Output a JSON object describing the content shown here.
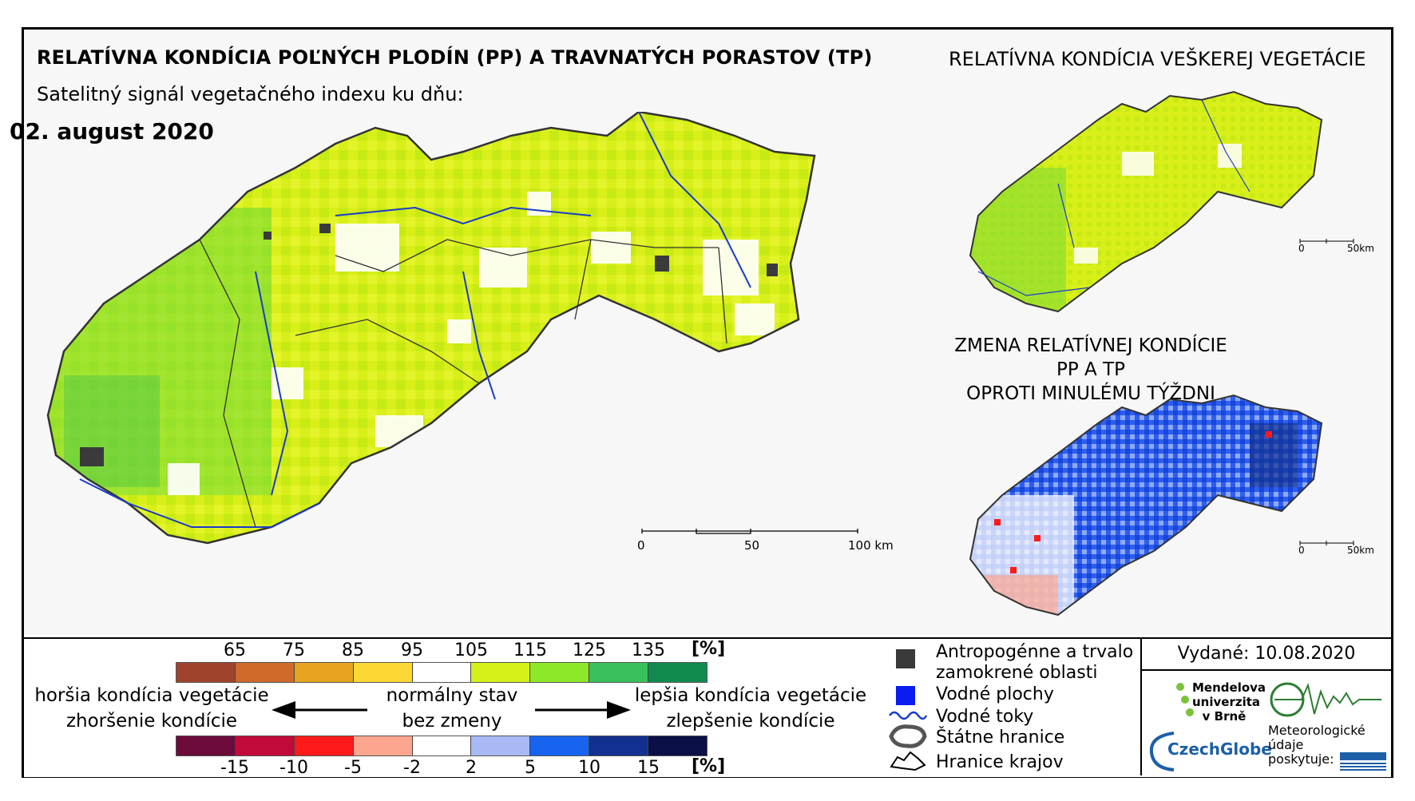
{
  "header": {
    "main_title": "RELATÍVNA KONDÍCIA POĽNÝCH PLODÍN (PP) A TRAVNATÝCH PORASTOV (TP)",
    "subtitle": "Satelitný signál vegetačného indexu ku dňu:",
    "date": "02. august 2020",
    "right_title": "RELATÍVNA KONDÍCIA VEŠKEREJ VEGETÁCIE",
    "change_title_line1": "ZMENA RELATÍVNEJ KONDÍCIE PP A TP",
    "change_title_line2": "OPROTI MINULÉMU TÝŽDNI"
  },
  "main_scale": {
    "labels": [
      "0",
      "50",
      "100 km"
    ]
  },
  "small_scale_top": {
    "labels": [
      "0",
      "50km"
    ]
  },
  "small_scale_bottom": {
    "labels": [
      "0",
      "50km"
    ]
  },
  "condition_legend": {
    "ticks": [
      "65",
      "75",
      "85",
      "95",
      "105",
      "115",
      "125",
      "135"
    ],
    "unit": "[%]",
    "colors": [
      "#a0432c",
      "#d06a2b",
      "#e8a420",
      "#fcd835",
      "#ffffff",
      "#d6f01a",
      "#8ee82a",
      "#3ac05a",
      "#118a4f"
    ]
  },
  "change_legend": {
    "ticks": [
      "-15",
      "-10",
      "-5",
      "-2",
      "2",
      "5",
      "10",
      "15"
    ],
    "unit": "[%]",
    "colors": [
      "#6b0a3b",
      "#c10a3a",
      "#ff1a1a",
      "#fca58f",
      "#ffffff",
      "#a8b9f5",
      "#1764f0",
      "#12308f",
      "#0a0f47"
    ]
  },
  "legend_text": {
    "worse_line1": "horšia kondícia vegetácie",
    "worse_line2": "zhoršenie kondície",
    "normal_line1": "normálny stav",
    "normal_line2": "bez zmeny",
    "better_line1": "lepšia kondícia vegetácie",
    "better_line2": "zlepšenie kondície"
  },
  "symbols": {
    "urban_line1": "Antropogénne a trvalo",
    "urban_line2": "zamokrené oblasti",
    "water": "Vodné plochy",
    "rivers": "Vodné toky",
    "borders": "Štátne hranice",
    "regions": "Hranice krajov",
    "colors": {
      "urban": "#3a3a3a",
      "water": "#0a1cf0",
      "river": "#1a3cc8"
    }
  },
  "issued": "Vydané: 10.08.2020",
  "logos": {
    "mendel_line1": "Mendelova",
    "mendel_line2": "univerzita",
    "mendel_line3": "v Brně",
    "czechglobe": "CzechGlobe",
    "meteo_line1": "Meteorologické",
    "meteo_line2": "údaje",
    "meteo_line3": "poskytuje:"
  }
}
